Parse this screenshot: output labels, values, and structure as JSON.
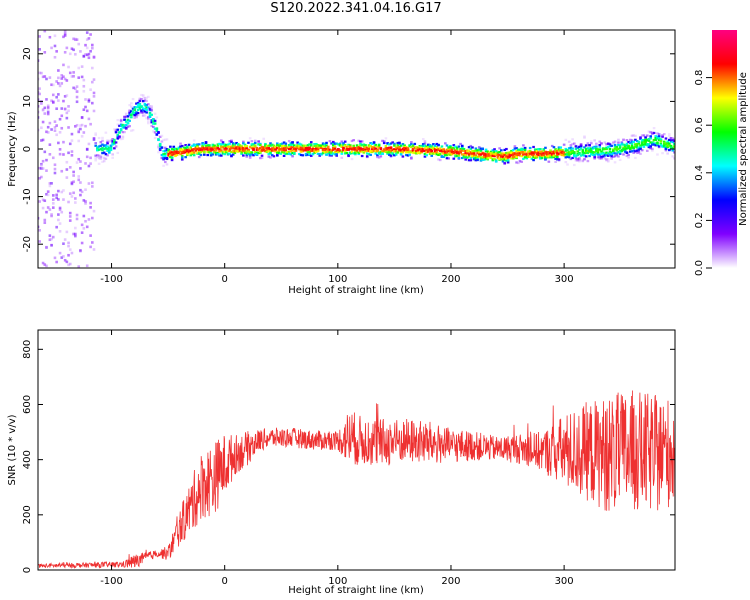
{
  "title": "S120.2022.341.04.16.G17",
  "chart_data": [
    {
      "type": "heatmap",
      "xlabel": "Height of straight line (km)",
      "ylabel": "Frequency (Hz)",
      "xlim": [
        -165,
        398
      ],
      "ylim": [
        -25,
        25
      ],
      "xticks": [
        -100,
        0,
        100,
        200,
        300
      ],
      "yticks": [
        -20,
        -10,
        0,
        10,
        20
      ],
      "grid": false,
      "ridge": {
        "x": [
          -165,
          -150,
          -130,
          -110,
          -100,
          -95,
          -90,
          -85,
          -80,
          -75,
          -70,
          -65,
          -60,
          -55,
          -50,
          -40,
          -20,
          0,
          50,
          100,
          150,
          200,
          240,
          250,
          260,
          280,
          300,
          320,
          340,
          360,
          380,
          390,
          398
        ],
        "y": [
          0,
          0,
          0,
          0,
          0,
          3,
          5,
          6,
          8,
          9,
          9,
          7,
          4,
          -1,
          -1,
          -0.8,
          0,
          0,
          0,
          0,
          0,
          -0.5,
          -1.5,
          -1.5,
          -1,
          -1,
          -0.8,
          -0.5,
          -0.3,
          0.5,
          2,
          1,
          0.5
        ]
      },
      "colorbar": {
        "label": "Normalized spectral amplitude",
        "range": [
          0,
          1
        ],
        "ticks": [
          "0.0",
          "0.2",
          "0.4",
          "0.6",
          "0.8"
        ],
        "colors": [
          "#ffffff",
          "#8000ff",
          "#0000ff",
          "#00ffff",
          "#00ff00",
          "#ffff00",
          "#ff0000",
          "#ff0080"
        ]
      }
    },
    {
      "type": "line",
      "xlabel": "Height of straight line (km)",
      "ylabel": "SNR (10 * v/v)",
      "xlim": [
        -165,
        398
      ],
      "ylim": [
        0,
        870
      ],
      "xticks": [
        -100,
        0,
        100,
        200,
        300
      ],
      "yticks": [
        0,
        200,
        400,
        600,
        800
      ],
      "grid": false,
      "series": [
        {
          "color": "#ee3030",
          "envelope": {
            "x": [
              -165,
              -90,
              -80,
              -70,
              -60,
              -50,
              -40,
              -30,
              -20,
              -10,
              0,
              10,
              20,
              30,
              40,
              60,
              80,
              100,
              110,
              120,
              140,
              160,
              180,
              200,
              220,
              240,
              260,
              280,
              300,
              320,
              340,
              360,
              380,
              398
            ],
            "mean": [
              15,
              20,
              30,
              45,
              60,
              60,
              150,
              230,
              310,
              330,
              380,
              420,
              440,
              470,
              480,
              480,
              470,
              470,
              480,
              470,
              460,
              470,
              460,
              450,
              450,
              440,
              440,
              430,
              430,
              430,
              420,
              430,
              420,
              430
            ],
            "spread": [
              8,
              12,
              30,
              20,
              15,
              30,
              70,
              110,
              140,
              150,
              130,
              80,
              70,
              45,
              40,
              40,
              40,
              40,
              120,
              100,
              100,
              90,
              90,
              70,
              60,
              50,
              60,
              80,
              150,
              200,
              240,
              250,
              240,
              220
            ]
          }
        }
      ]
    }
  ]
}
